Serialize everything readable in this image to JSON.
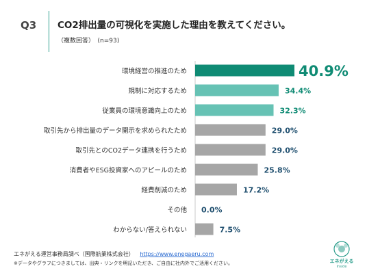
{
  "header": {
    "question_number": "Q3",
    "question_text": "CO2排出量の可視化を実施した理由を教えてください。",
    "note": "（複数回答）　(n=93)"
  },
  "chart_data": {
    "type": "bar",
    "orientation": "horizontal",
    "title": "",
    "xlabel": "",
    "ylabel": "",
    "xlim": [
      0,
      45
    ],
    "grid": false,
    "categories": [
      "環境経営の推進のため",
      "規制に対応するため",
      "従業員の環境意識向上のため",
      "取引先から排出量のデータ開示を求められたため",
      "取引先とのCO2データ連携を行うため",
      "消費者やESG投資家へのアピールのため",
      "経費削減のため",
      "その他",
      "わからない/答えられない"
    ],
    "values": [
      40.9,
      34.4,
      32.3,
      29.0,
      29.0,
      25.8,
      17.2,
      0.0,
      7.5
    ],
    "value_labels": [
      "40.9%",
      "34.4%",
      "32.3%",
      "29.0%",
      "29.0%",
      "25.8%",
      "17.2%",
      "0.0%",
      "7.5%"
    ],
    "colors": {
      "top": "#0f8b74",
      "highlight": "#66c2b4",
      "other": "#a6a6a6",
      "label_teal": "#0f8b74",
      "label_gray": "#1e4e6e"
    },
    "color_groups": [
      "top",
      "highlight",
      "highlight",
      "other",
      "other",
      "other",
      "other",
      "other",
      "other"
    ]
  },
  "footer": {
    "source": "エネがえる運営事務局調べ（国際航業株式会社）",
    "url": "https://www.enegaeru.com",
    "notice": "※データやグラフにつきましては、出典・リンクを明記いただき、ご自由に社内外でご活用ください。"
  },
  "logo": {
    "name": "エネがえる",
    "sub": "Inside",
    "color": "#2e9e8d"
  }
}
